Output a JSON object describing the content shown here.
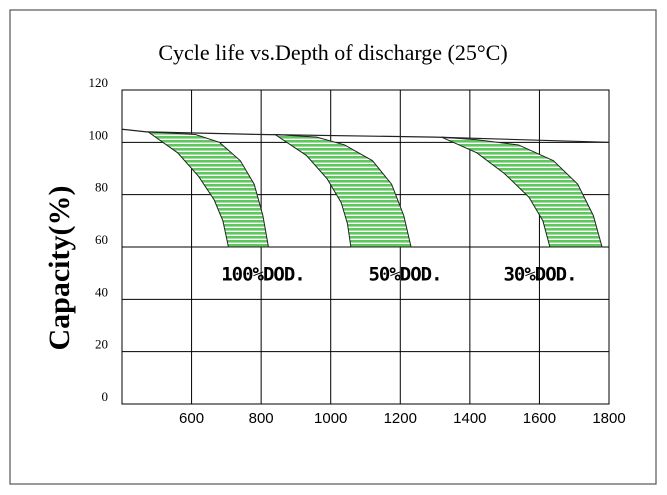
{
  "chart_data": {
    "type": "band",
    "title": "Cycle life vs.Depth of discharge (25°C)",
    "y_label": "Capacity(%)",
    "xlim": [
      400,
      1800
    ],
    "xticks": [
      600,
      800,
      1000,
      1200,
      1400,
      1600,
      1800
    ],
    "ylim": [
      0,
      120
    ],
    "yticks": [
      0,
      20,
      40,
      60,
      80,
      100,
      120
    ],
    "grid": true,
    "color": "#5ec85e",
    "line": {
      "x": [
        400,
        470,
        800,
        1300,
        1800
      ],
      "values": [
        105,
        104,
        103,
        102,
        100
      ]
    },
    "bands": [
      {
        "label": "100%DOD.",
        "x": [
          475,
          560,
          620,
          665,
          690,
          706,
          821,
          805,
          780,
          740,
          680,
          611
        ],
        "values": [
          104,
          96,
          87,
          78,
          70,
          60,
          60,
          72,
          84,
          93,
          100,
          103
        ]
      },
      {
        "label": "50%DOD.",
        "x": [
          840,
          930,
          990,
          1030,
          1048,
          1058,
          1231,
          1210,
          1175,
          1120,
          1040,
          960
        ],
        "values": [
          103,
          95,
          86,
          77,
          69,
          60,
          60,
          72,
          84,
          93,
          99,
          102
        ]
      },
      {
        "label": "30%DOD.",
        "x": [
          1318,
          1420,
          1500,
          1570,
          1610,
          1630,
          1780,
          1755,
          1710,
          1640,
          1540,
          1420
        ],
        "values": [
          102,
          96,
          88,
          79,
          70,
          60,
          60,
          72,
          84,
          93,
          99,
          101
        ]
      }
    ]
  }
}
